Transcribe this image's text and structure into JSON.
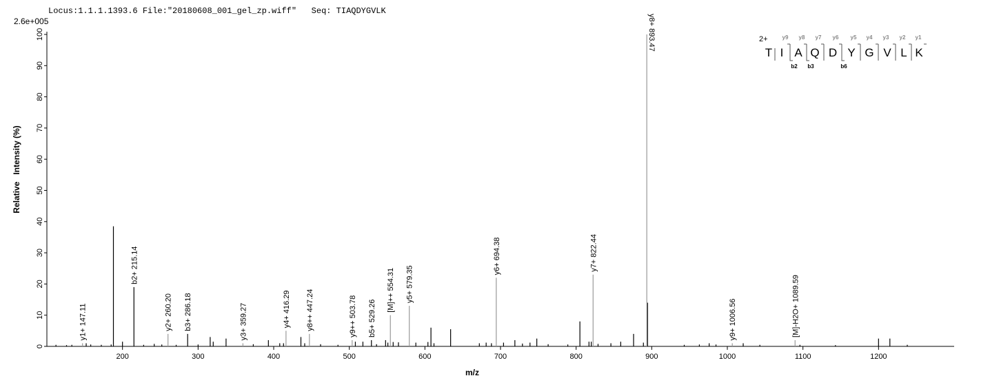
{
  "chart_data": {
    "type": "spectrum",
    "header": "Locus:1.1.1.1393.6 File:\"20180608_001_gel_zp.wiff\"   Seq: TIAQDYGVLK",
    "scale_label": "2.6e+005",
    "x_label": "m/z",
    "y_label": "Relative   Intensity (%)",
    "xlim": [
      100,
      1300
    ],
    "ylim": [
      0,
      100
    ],
    "xticks": [
      200,
      300,
      400,
      500,
      600,
      700,
      800,
      900,
      1000,
      1100,
      1200
    ],
    "yticks": [
      0,
      10,
      20,
      30,
      40,
      50,
      60,
      70,
      80,
      90,
      100
    ],
    "color": "#000000",
    "x": [
      112,
      126,
      133,
      152,
      158,
      172,
      185,
      188,
      200,
      228,
      242,
      252,
      271,
      300,
      316,
      320,
      337,
      373,
      393,
      408,
      413,
      436,
      441,
      462,
      485,
      508,
      518,
      536,
      548,
      551,
      558,
      565,
      588,
      604,
      608,
      612,
      634,
      672,
      681,
      688,
      704,
      719,
      729,
      739,
      748,
      763,
      789,
      805,
      817,
      820,
      829,
      846,
      859,
      876,
      889,
      894.5,
      943,
      963,
      976,
      985,
      1021,
      1043,
      1096,
      1143,
      1200,
      1215,
      1238
    ],
    "values": [
      0.5,
      0.4,
      0.5,
      1,
      0.6,
      0.5,
      0.6,
      38.5,
      1.5,
      0.5,
      0.8,
      0.6,
      0.5,
      0.6,
      3,
      1.5,
      2.5,
      0.7,
      2,
      1,
      1,
      3,
      1,
      0.7,
      0.5,
      1.5,
      1.5,
      0.7,
      2,
      1.2,
      1.4,
      1.3,
      1.2,
      1.4,
      6,
      1,
      5.5,
      1,
      1.2,
      1,
      1.2,
      2,
      0.9,
      1.2,
      2.5,
      0.7,
      0.6,
      8,
      1.5,
      1.5,
      0.8,
      1,
      1.5,
      4,
      1.2,
      14,
      0.5,
      0.6,
      1,
      0.6,
      1,
      0.5,
      0.5,
      0.4,
      2.5,
      2.5,
      0.5
    ],
    "annotations": [
      {
        "label": "y1+ 147.11",
        "x": 147.11,
        "y": 1,
        "color": "#999999"
      },
      {
        "label": "b2+ 215.14",
        "x": 215.14,
        "y": 19,
        "color": "#000000"
      },
      {
        "label": "y2+ 260.20",
        "x": 260.2,
        "y": 4,
        "color": "#999999"
      },
      {
        "label": "b3+ 286.18",
        "x": 286.18,
        "y": 4,
        "color": "#000000"
      },
      {
        "label": "y3+ 359.27",
        "x": 359.27,
        "y": 1,
        "color": "#999999"
      },
      {
        "label": "y4+ 416.29",
        "x": 416.29,
        "y": 5,
        "color": "#999999"
      },
      {
        "label": "y8++ 447.24",
        "x": 447.24,
        "y": 4,
        "color": "#999999"
      },
      {
        "label": "y9++ 503.78",
        "x": 503.78,
        "y": 2,
        "color": "#999999"
      },
      {
        "label": "b5+ 529.26",
        "x": 529.26,
        "y": 2,
        "color": "#000000"
      },
      {
        "label": "[M]++ 554.31",
        "x": 554.31,
        "y": 10,
        "color": "#999999"
      },
      {
        "label": "y5+ 579.35",
        "x": 579.35,
        "y": 13,
        "color": "#999999"
      },
      {
        "label": "y6+ 694.38",
        "x": 694.38,
        "y": 22,
        "color": "#999999"
      },
      {
        "label": "y7+ 822.44",
        "x": 822.44,
        "y": 23,
        "color": "#999999"
      },
      {
        "label": "y8+ 893.47",
        "x": 893.47,
        "y": 100,
        "color": "#999999"
      },
      {
        "label": "y9+ 1006.56",
        "x": 1006.56,
        "y": 1,
        "color": "#999999"
      },
      {
        "label": "[M]-H2O+ 1089.59",
        "x": 1089.59,
        "y": 2,
        "color": "#999999"
      }
    ],
    "sequence": {
      "charge": "2+",
      "residues": [
        "T",
        "I",
        "A",
        "Q",
        "D",
        "Y",
        "G",
        "V",
        "L",
        "K"
      ],
      "y_ions": [
        "y9",
        "y8",
        "y7",
        "y6",
        "y5",
        "y4",
        "y3",
        "y2",
        "y1"
      ],
      "b_ions": [
        "b2",
        "b3",
        "b6"
      ]
    }
  }
}
